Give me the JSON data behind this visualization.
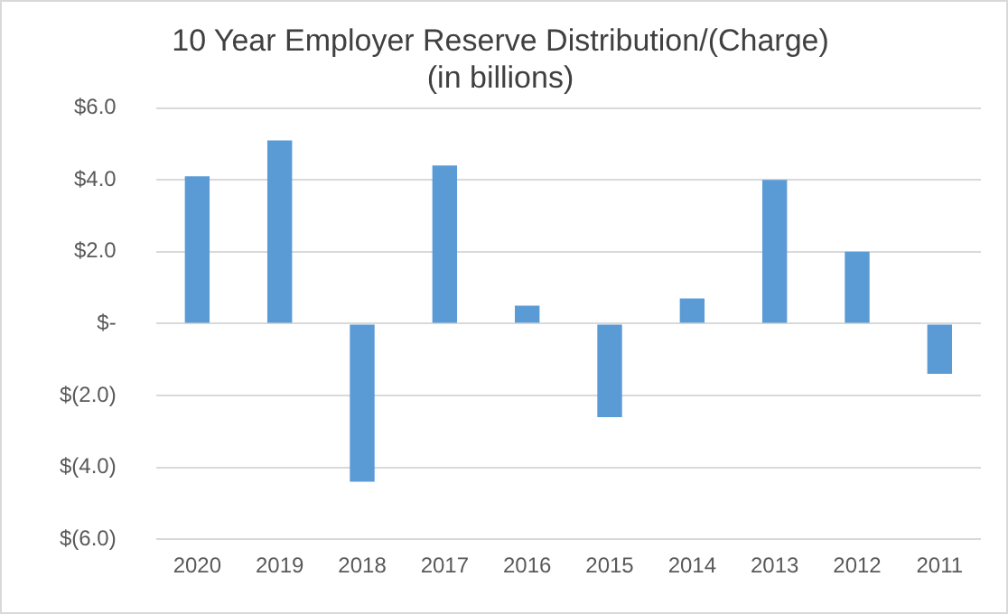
{
  "chart_data": {
    "type": "bar",
    "title": "10 Year Employer Reserve Distribution/(Charge)",
    "subtitle": "(in billions)",
    "categories": [
      "2020",
      "2019",
      "2018",
      "2017",
      "2016",
      "2015",
      "2014",
      "2013",
      "2012",
      "2011"
    ],
    "values": [
      4.1,
      5.1,
      -4.4,
      4.4,
      0.5,
      -2.6,
      0.7,
      4.0,
      2.0,
      -1.4
    ],
    "color": "#5b9bd5",
    "ylim": [
      -6,
      6
    ],
    "yticks": [
      {
        "value": -6,
        "label": "$(6.0)"
      },
      {
        "value": -4,
        "label": "$(4.0)"
      },
      {
        "value": -2,
        "label": "$(2.0)"
      },
      {
        "value": 0,
        "label": "$-"
      },
      {
        "value": 2,
        "label": "$2.0"
      },
      {
        "value": 4,
        "label": "$4.0"
      },
      {
        "value": 6,
        "label": "$6.0"
      }
    ],
    "grid": "y",
    "legend": false
  }
}
